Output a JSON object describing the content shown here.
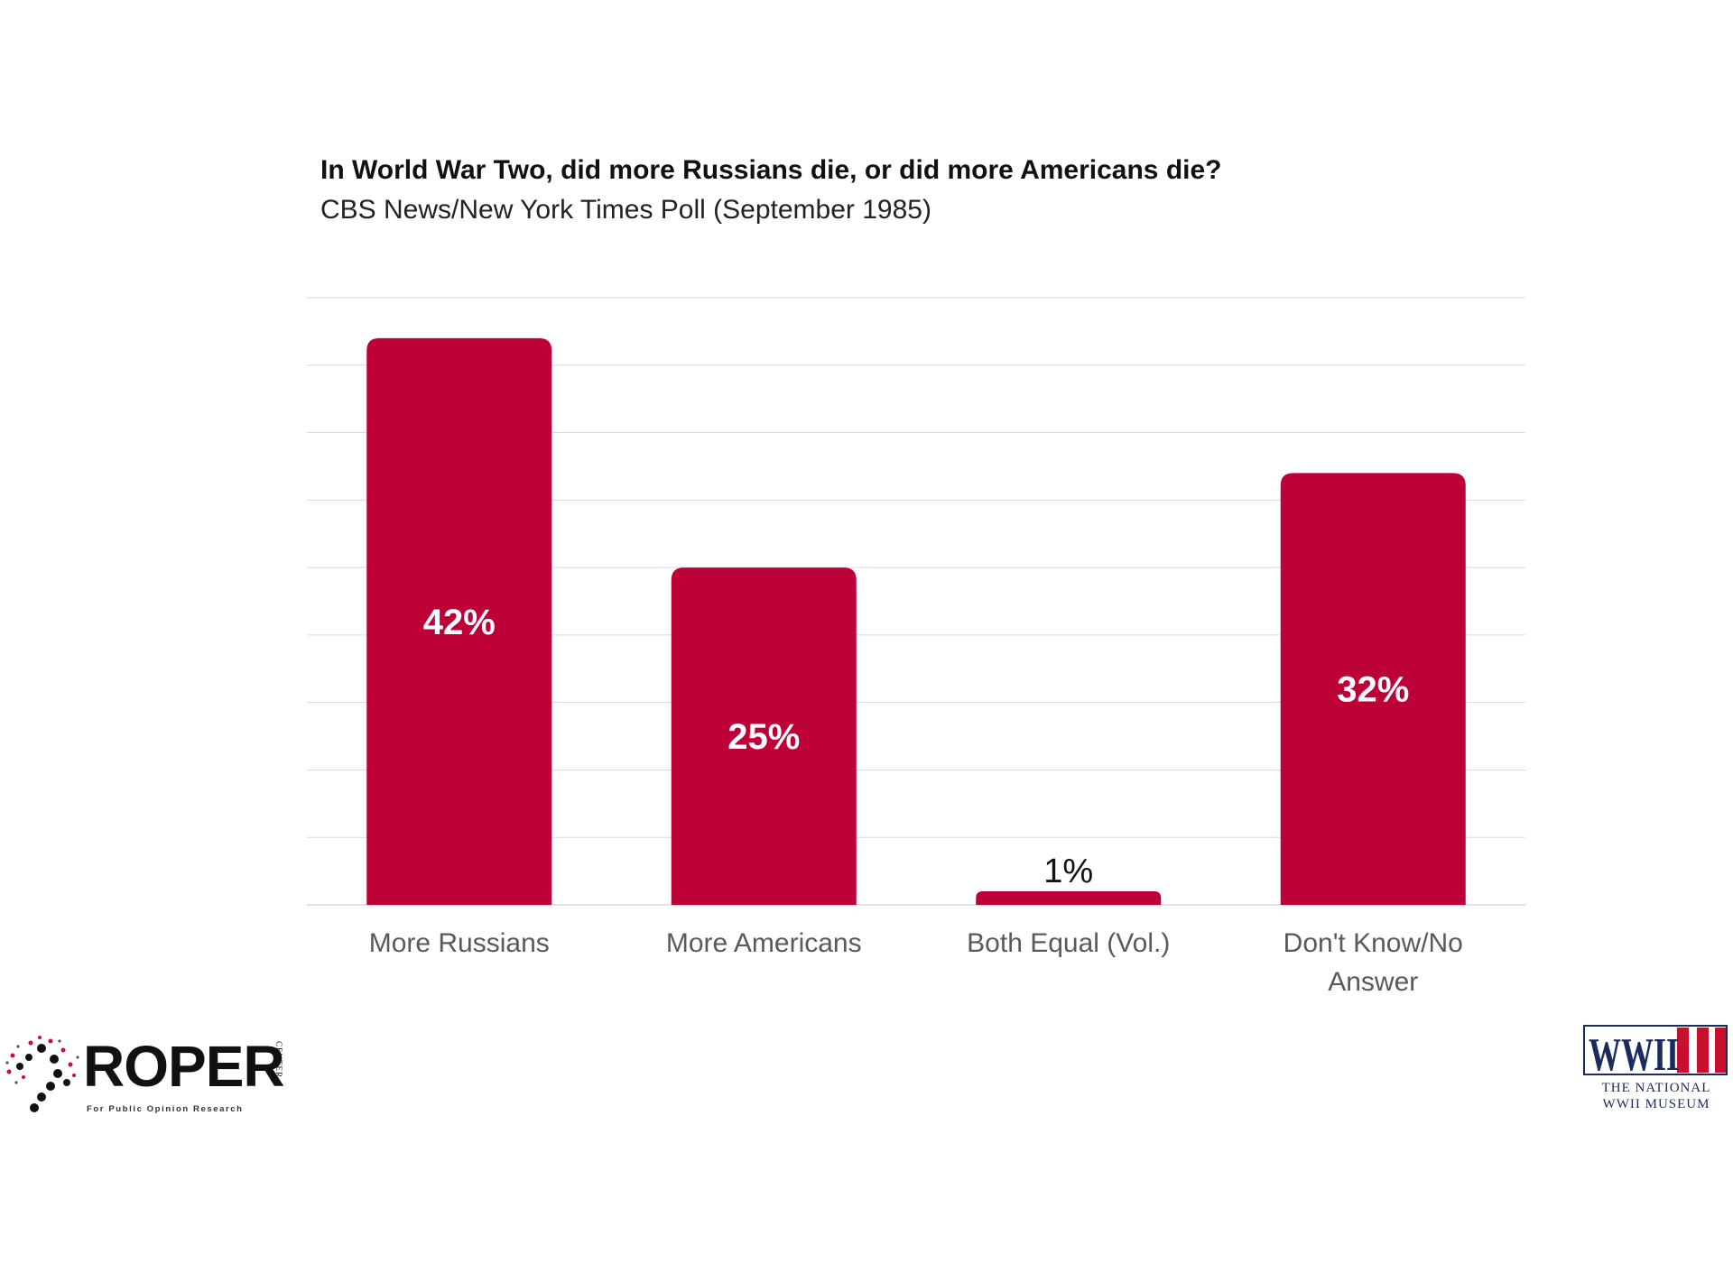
{
  "header": {
    "title": "In World War Two, did more Russians die, or did more Americans die?",
    "subtitle": "CBS News/New York Times Poll (September 1985)"
  },
  "chart_data": {
    "type": "bar",
    "title": "In World War Two, did more Russians die, or did more Americans die?",
    "subtitle": "CBS News/New York Times Poll (September 1985)",
    "categories": [
      "More Russians",
      "More Americans",
      "Both Equal (Vol.)",
      "Don't Know/No Answer"
    ],
    "category_lines": [
      [
        "More Russians"
      ],
      [
        "More Americans"
      ],
      [
        "Both Equal (Vol.)"
      ],
      [
        "Don't Know/No",
        "Answer"
      ]
    ],
    "values": [
      42,
      25,
      1,
      32
    ],
    "value_labels": [
      "42%",
      "25%",
      "1%",
      "32%"
    ],
    "xlabel": "",
    "ylabel": "",
    "ylim": [
      0,
      45
    ],
    "grid": true,
    "legend": "none",
    "colors": {
      "bar": "#be0039",
      "label_inside": "#ffffff",
      "label_outside": "#111111",
      "gridline": "#d9d9d9",
      "axis_text": "#595959"
    }
  },
  "logos": {
    "roper": {
      "wordmark": "ROPER",
      "side_text": "CENTER",
      "tagline": "For Public Opinion Research"
    },
    "museum": {
      "wordmark": "WWII",
      "line1": "THE NATIONAL",
      "line2": "WWII MUSEUM"
    }
  }
}
